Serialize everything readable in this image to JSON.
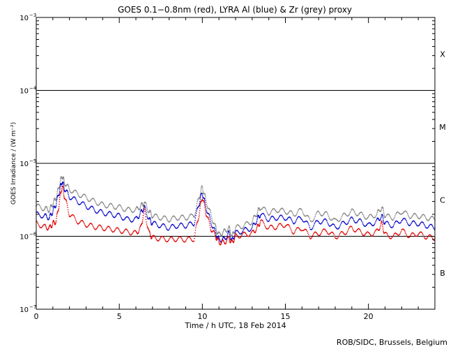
{
  "chart_data": {
    "type": "line",
    "title": "GOES 0.1−0.8nm (red), LYRA Al (blue) & Zr (grey) proxy",
    "xlabel": "Time / h UTC, 18 Feb 2014",
    "ylabel": "GOES Irradiance / (W m⁻²)",
    "xlim": [
      0,
      24
    ],
    "ylim": [
      1e-07,
      0.001
    ],
    "yscale": "log",
    "x_ticks": [
      0,
      5,
      10,
      15,
      20
    ],
    "x_tick_labels": [
      "0",
      "5",
      "10",
      "15",
      "20"
    ],
    "y_ticks": [
      1e-07,
      1e-06,
      1e-05,
      0.0001,
      0.001
    ],
    "y_tick_labels": [
      {
        "base": "10",
        "exp": "−7"
      },
      {
        "base": "10",
        "exp": "−6"
      },
      {
        "base": "10",
        "exp": "−5"
      },
      {
        "base": "10",
        "exp": "−4"
      },
      {
        "base": "10",
        "exp": "−3"
      }
    ],
    "class_lines": [
      1e-06,
      1e-05,
      0.0001
    ],
    "class_labels": [
      {
        "label": "X",
        "y": 0.000316
      },
      {
        "label": "M",
        "y": 3.16e-05
      },
      {
        "label": "C",
        "y": 3.16e-06
      },
      {
        "label": "B",
        "y": 3.16e-07
      }
    ],
    "series": [
      {
        "color": "#808080",
        "x": [
          0,
          0.5,
          0.8,
          1.0,
          1.2,
          1.4,
          1.55,
          1.7,
          2.0,
          2.5,
          3.0,
          3.5,
          4.0,
          4.5,
          5.0,
          5.5,
          6.0,
          6.3,
          6.5,
          6.8,
          7.0,
          7.5,
          8.0,
          8.5,
          9.0,
          9.5,
          9.8,
          10.0,
          10.2,
          10.5,
          10.8,
          11.0,
          11.3,
          11.6,
          11.8,
          12.0,
          12.5,
          13.0,
          13.3,
          13.5,
          14.0,
          14.5,
          15.0,
          15.5,
          16.0,
          16.5,
          17.0,
          17.5,
          18.0,
          18.5,
          19.0,
          19.5,
          20.0,
          20.5,
          20.8,
          21.0,
          21.5,
          22.0,
          22.5,
          23.0,
          23.5,
          24.0
        ],
        "values": [
          2.6e-06,
          2.4e-06,
          2.3e-06,
          2.8e-06,
          3.4e-06,
          5e-06,
          6.8e-06,
          5.5e-06,
          4.4e-06,
          3.8e-06,
          3.4e-06,
          3e-06,
          2.7e-06,
          2.6e-06,
          2.5e-06,
          2.3e-06,
          2.3e-06,
          2.6e-06,
          2.9e-06,
          2.2e-06,
          1.9e-06,
          1.8e-06,
          1.7e-06,
          1.8e-06,
          1.8e-06,
          1.9e-06,
          3.4e-06,
          4.8e-06,
          3.2e-06,
          2e-06,
          1.3e-06,
          1.05e-06,
          1.15e-06,
          1.3e-06,
          1e-06,
          1.3e-06,
          1.4e-06,
          1.6e-06,
          2.1e-06,
          2.5e-06,
          2.1e-06,
          2.3e-06,
          2.2e-06,
          2e-06,
          2.3e-06,
          1.6e-06,
          2.1e-06,
          2e-06,
          1.6e-06,
          1.9e-06,
          2.2e-06,
          2e-06,
          1.8e-06,
          2e-06,
          2.5e-06,
          1.9e-06,
          1.8e-06,
          2.2e-06,
          1.9e-06,
          1.9e-06,
          1.8e-06,
          1.7e-06
        ]
      },
      {
        "color": "#0000cc",
        "x": [
          0,
          0.5,
          0.8,
          1.0,
          1.2,
          1.4,
          1.55,
          1.7,
          2.0,
          2.5,
          3.0,
          3.5,
          4.0,
          4.5,
          5.0,
          5.5,
          6.0,
          6.3,
          6.5,
          6.8,
          7.0,
          7.5,
          8.0,
          8.5,
          9.0,
          9.5,
          9.8,
          10.0,
          10.2,
          10.5,
          10.8,
          11.0,
          11.3,
          11.6,
          11.8,
          12.0,
          12.5,
          13.0,
          13.3,
          13.5,
          14.0,
          14.5,
          15.0,
          15.5,
          16.0,
          16.5,
          17.0,
          17.5,
          18.0,
          18.5,
          19.0,
          19.5,
          20.0,
          20.5,
          20.8,
          21.0,
          21.5,
          22.0,
          22.5,
          23.0,
          23.5,
          24.0
        ],
        "values": [
          2e-06,
          1.9e-06,
          1.8e-06,
          2.2e-06,
          2.8e-06,
          4.2e-06,
          5.7e-06,
          4.5e-06,
          3.5e-06,
          3e-06,
          2.6e-06,
          2.3e-06,
          2.1e-06,
          2e-06,
          1.9e-06,
          1.7e-06,
          1.7e-06,
          2.1e-06,
          2.5e-06,
          1.7e-06,
          1.5e-06,
          1.4e-06,
          1.3e-06,
          1.4e-06,
          1.4e-06,
          1.5e-06,
          2.8e-06,
          4e-06,
          2.6e-06,
          1.6e-06,
          1.1e-06,
          9e-07,
          9e-07,
          1.1e-06,
          8.7e-07,
          1.1e-06,
          1.2e-06,
          1.3e-06,
          1.7e-06,
          2e-06,
          1.7e-06,
          1.8e-06,
          1.8e-06,
          1.6e-06,
          1.8e-06,
          1.3e-06,
          1.6e-06,
          1.6e-06,
          1.3e-06,
          1.5e-06,
          1.7e-06,
          1.6e-06,
          1.4e-06,
          1.6e-06,
          1.9e-06,
          1.5e-06,
          1.4e-06,
          1.7e-06,
          1.5e-06,
          1.5e-06,
          1.4e-06,
          1.3e-06
        ]
      },
      {
        "color": "#e00000",
        "x": [
          0,
          0.5,
          0.8,
          1.0,
          1.2,
          1.4,
          1.55,
          1.7,
          2.0,
          2.5,
          3.0,
          3.5,
          4.0,
          4.5,
          5.0,
          5.5,
          6.0,
          6.3,
          6.5,
          6.8,
          7.0,
          7.5,
          8.0,
          8.5,
          9.0,
          9.5,
          9.8,
          10.0,
          10.2,
          10.5,
          10.8,
          11.0,
          11.3,
          11.6,
          11.8,
          12.0,
          12.5,
          13.0,
          13.3,
          13.5,
          14.0,
          14.5,
          15.0,
          15.5,
          16.0,
          16.5,
          17.0,
          17.5,
          18.0,
          18.5,
          19.0,
          19.5,
          20.0,
          20.5,
          20.8,
          21.0,
          21.5,
          22.0,
          22.5,
          23.0,
          23.5,
          24.0
        ],
        "values": [
          1.5e-06,
          1.35e-06,
          1.3e-06,
          1.5e-06,
          1.6e-06,
          3e-06,
          5e-06,
          3.5e-06,
          2e-06,
          1.6e-06,
          1.45e-06,
          1.35e-06,
          1.3e-06,
          1.25e-06,
          1.2e-06,
          1.15e-06,
          1.1e-06,
          1.3e-06,
          2.3e-06,
          1.1e-06,
          9.5e-07,
          9.3e-07,
          9e-07,
          9.2e-07,
          9e-07,
          9.2e-07,
          2e-06,
          3.5e-06,
          2.2e-06,
          1.3e-06,
          1e-06,
          8.3e-07,
          8.2e-07,
          9.3e-07,
          8.2e-07,
          1e-06,
          1.05e-06,
          1.1e-06,
          1.3e-06,
          1.6e-06,
          1.3e-06,
          1.35e-06,
          1.45e-06,
          1.15e-06,
          1.3e-06,
          1e-06,
          1.1e-06,
          1.2e-06,
          9.8e-07,
          1.1e-06,
          1.3e-06,
          1.15e-06,
          1.05e-06,
          1.15e-06,
          1.5e-06,
          1.05e-06,
          9.8e-07,
          1.2e-06,
          1e-06,
          1.1e-06,
          9.8e-07,
          9.5e-07
        ]
      }
    ]
  },
  "footer": {
    "credit": "ROB/SIDC, Brussels, Belgium"
  }
}
